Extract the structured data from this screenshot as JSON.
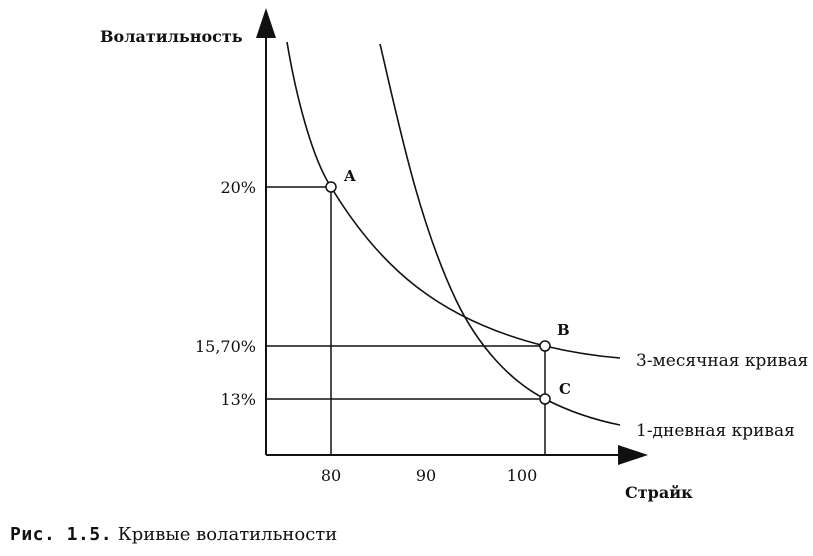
{
  "axes": {
    "y_title": "Волатильность",
    "x_title": "Страйк",
    "y_ticks": [
      "20%",
      "15,70%",
      "13%"
    ],
    "x_ticks": [
      "80",
      "90",
      "100"
    ]
  },
  "points": {
    "a": "A",
    "b": "B",
    "c": "C"
  },
  "curves": {
    "three_month": "3-месячная кривая",
    "one_day": "1-дневная кривая"
  },
  "caption": {
    "number": "Рис. 1.5.",
    "text": "Кривые волатильности"
  }
}
